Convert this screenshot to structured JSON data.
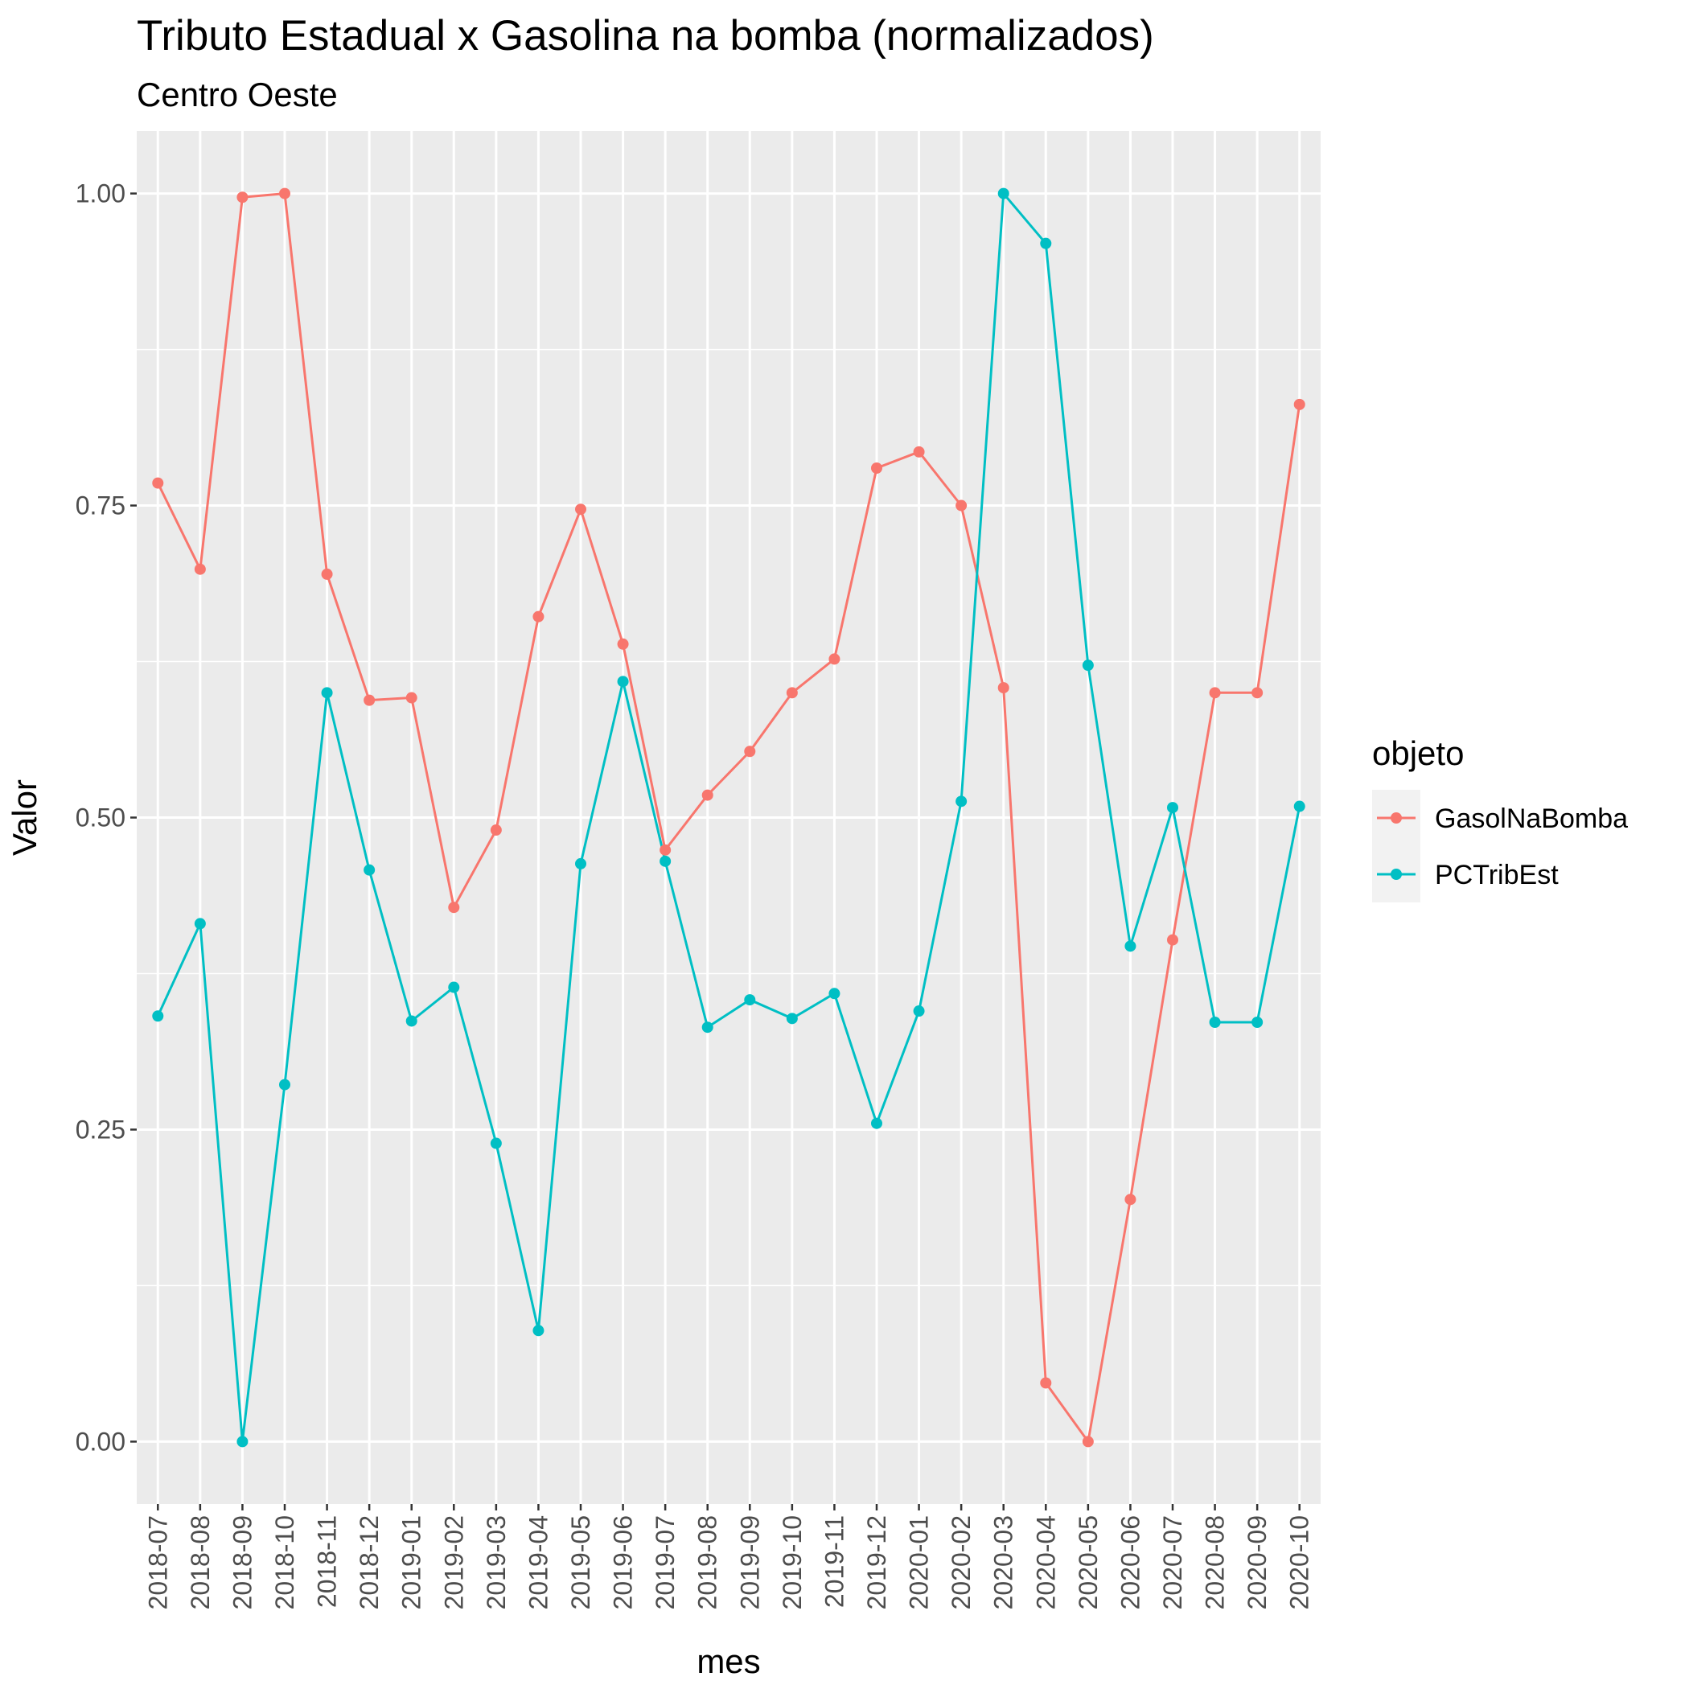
{
  "chart_data": {
    "type": "line",
    "title": "Tributo Estadual x Gasolina na bomba (normalizados)",
    "subtitle": "Centro Oeste",
    "xlabel": "mes",
    "ylabel": "Valor",
    "ylim": [
      -0.05,
      1.05
    ],
    "yticks": [
      0.0,
      0.25,
      0.5,
      0.75,
      1.0
    ],
    "ytick_labels": [
      "0.00",
      "0.25",
      "0.50",
      "0.75",
      "1.00"
    ],
    "grid": true,
    "legend_title": "objeto",
    "legend_position": "right",
    "categories": [
      "2018-07",
      "2018-08",
      "2018-09",
      "2018-10",
      "2018-11",
      "2018-12",
      "2019-01",
      "2019-02",
      "2019-03",
      "2019-04",
      "2019-05",
      "2019-06",
      "2019-07",
      "2019-08",
      "2019-09",
      "2019-10",
      "2019-11",
      "2019-12",
      "2020-01",
      "2020-02",
      "2020-03",
      "2020-04",
      "2020-05",
      "2020-06",
      "2020-07",
      "2020-08",
      "2020-09",
      "2020-10"
    ],
    "series": [
      {
        "name": "GasolNaBomba",
        "color": "#F8766D",
        "values": [
          0.768,
          0.699,
          0.997,
          1.0,
          0.695,
          0.594,
          0.596,
          0.428,
          0.49,
          0.661,
          0.747,
          0.639,
          0.474,
          0.518,
          0.553,
          0.6,
          0.627,
          0.78,
          0.793,
          0.75,
          0.604,
          0.047,
          0.0,
          0.194,
          0.402,
          0.6,
          0.6,
          0.831
        ]
      },
      {
        "name": "PCTribEst",
        "color": "#00BFC4",
        "values": [
          0.341,
          0.415,
          0.0,
          0.286,
          0.6,
          0.458,
          0.337,
          0.364,
          0.239,
          0.089,
          0.463,
          0.609,
          0.465,
          0.332,
          0.354,
          0.339,
          0.359,
          0.255,
          0.345,
          0.513,
          1.0,
          0.96,
          0.622,
          0.397,
          0.508,
          0.336,
          0.336,
          0.509
        ]
      }
    ]
  }
}
